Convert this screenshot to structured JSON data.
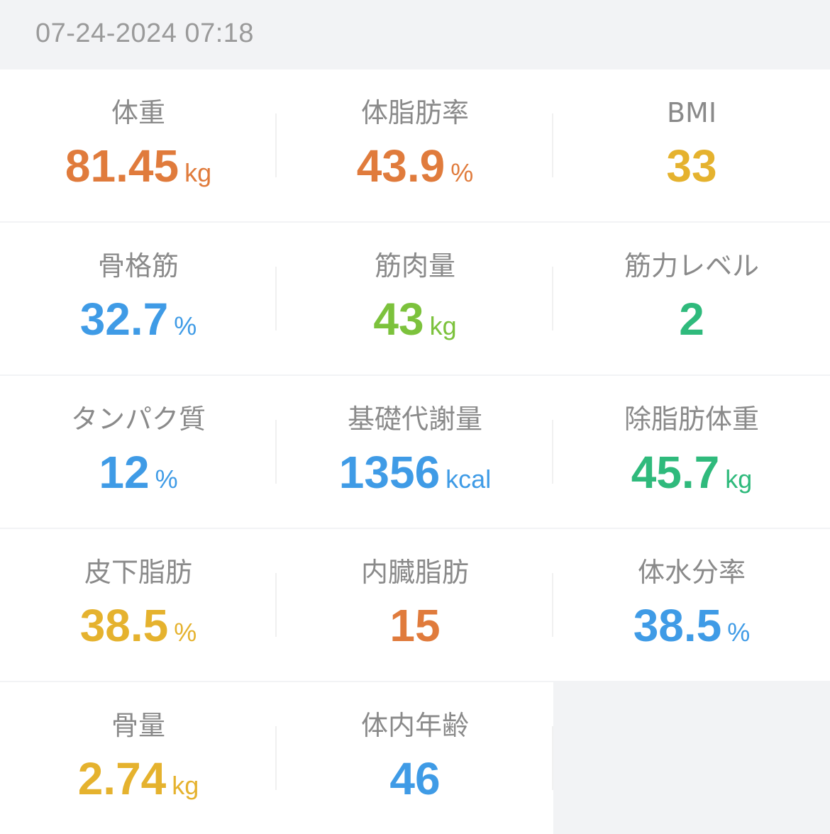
{
  "header": {
    "timestamp": "07-24-2024 07:18"
  },
  "colors": {
    "orange": "#e07b3c",
    "yellow": "#e5b22e",
    "blue": "#3f9be6",
    "lightgreen": "#7cc23c",
    "green": "#2fba7c",
    "label": "#8a8a8a"
  },
  "metrics": [
    {
      "label": "体重",
      "value": "81.45",
      "unit": "kg",
      "color": "#e07b3c"
    },
    {
      "label": "体脂肪率",
      "value": "43.9",
      "unit": "%",
      "color": "#e07b3c"
    },
    {
      "label": "BMI",
      "value": "33",
      "unit": "",
      "color": "#e5b22e"
    },
    {
      "label": "骨格筋",
      "value": "32.7",
      "unit": "%",
      "color": "#3f9be6"
    },
    {
      "label": "筋肉量",
      "value": "43",
      "unit": "kg",
      "color": "#7cc23c"
    },
    {
      "label": "筋力レベル",
      "value": "2",
      "unit": "",
      "color": "#2fba7c"
    },
    {
      "label": "タンパク質",
      "value": "12",
      "unit": "%",
      "color": "#3f9be6"
    },
    {
      "label": "基礎代謝量",
      "value": "1356",
      "unit": "kcal",
      "color": "#3f9be6"
    },
    {
      "label": "除脂肪体重",
      "value": "45.7",
      "unit": "kg",
      "color": "#2fba7c"
    },
    {
      "label": "皮下脂肪",
      "value": "38.5",
      "unit": "%",
      "color": "#e5b22e"
    },
    {
      "label": "内臓脂肪",
      "value": "15",
      "unit": "",
      "color": "#e07b3c"
    },
    {
      "label": "体水分率",
      "value": "38.5",
      "unit": "%",
      "color": "#3f9be6"
    },
    {
      "label": "骨量",
      "value": "2.74",
      "unit": "kg",
      "color": "#e5b22e"
    },
    {
      "label": "体内年齢",
      "value": "46",
      "unit": "",
      "color": "#3f9be6"
    }
  ]
}
